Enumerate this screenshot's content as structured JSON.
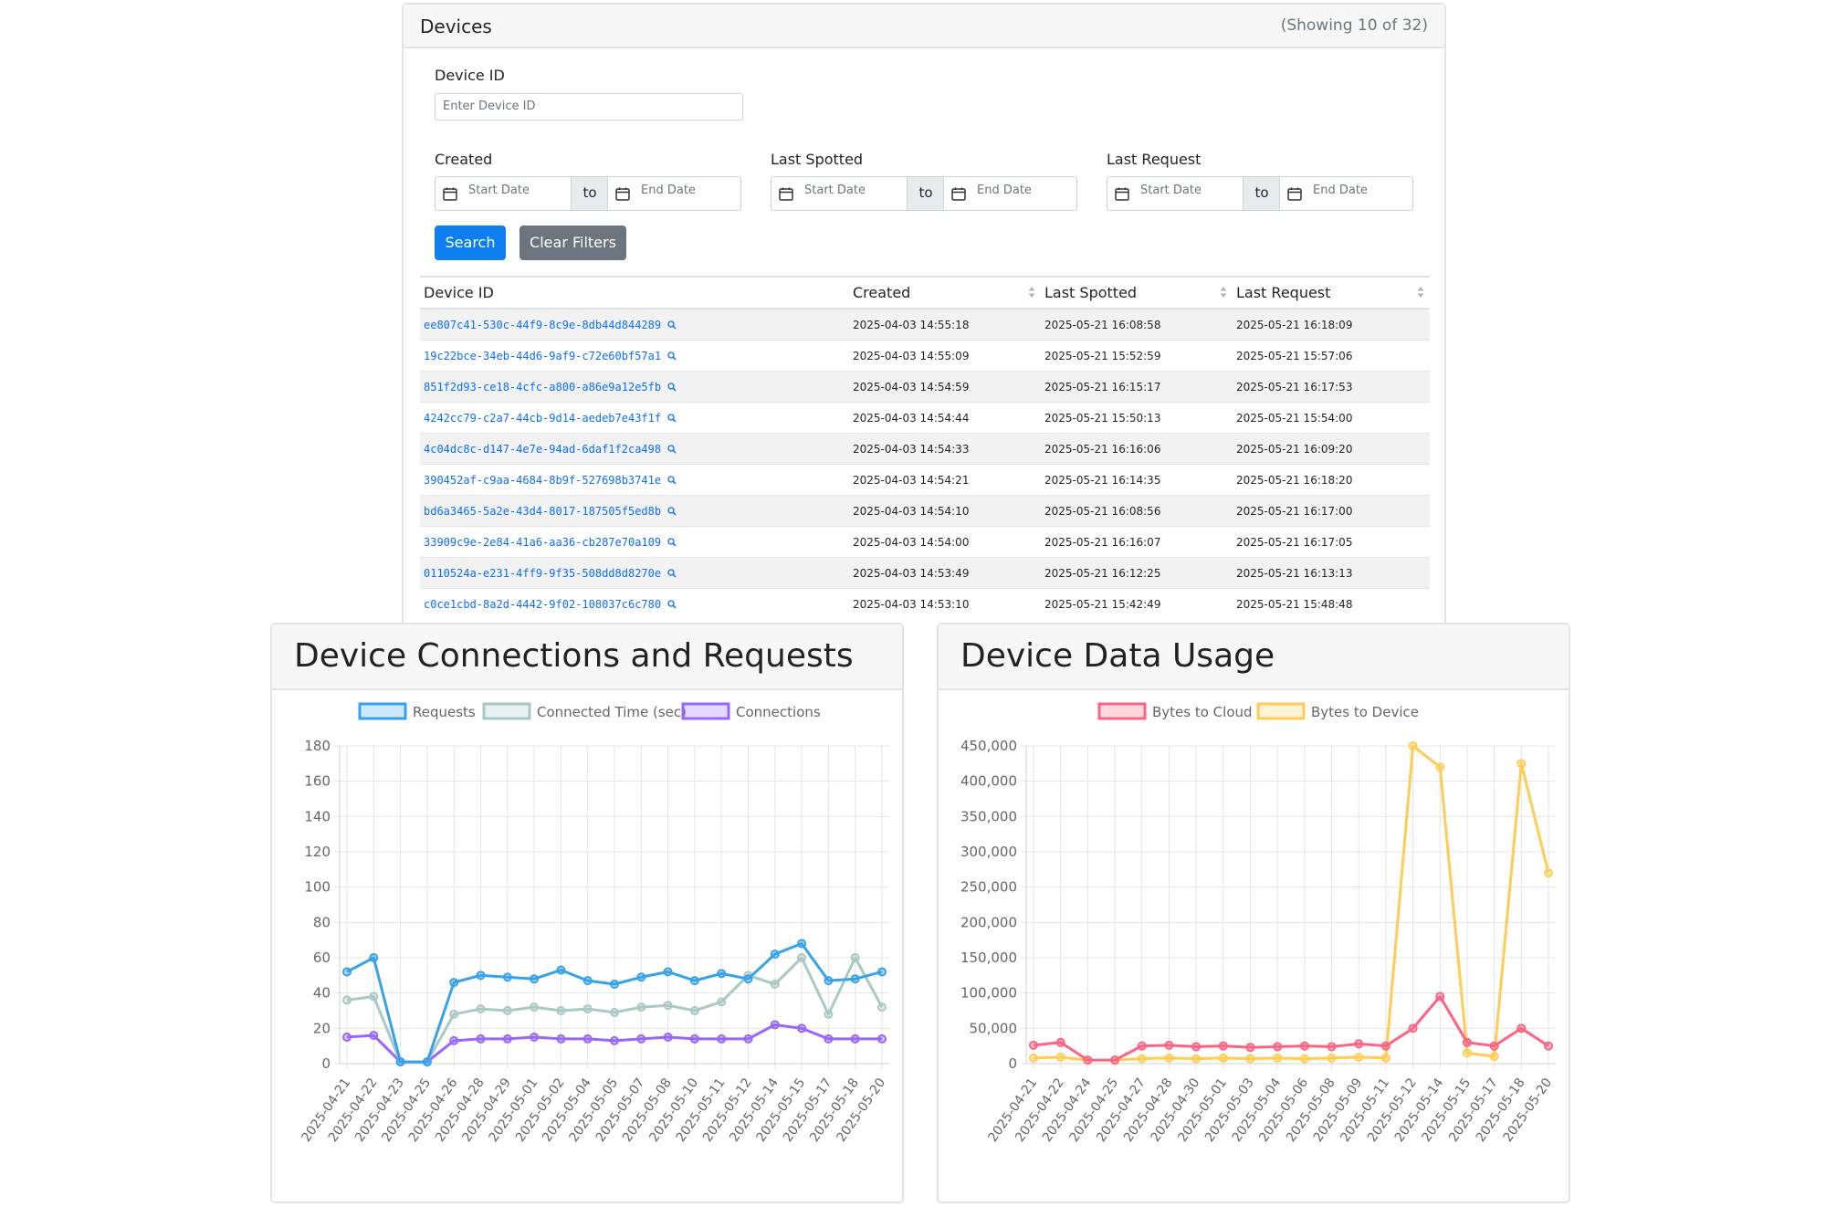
{
  "devices": {
    "title": "Devices",
    "showing": "(Showing 10 of 32)",
    "filters": {
      "device_id_label": "Device ID",
      "device_id_placeholder": "Enter Device ID",
      "created_label": "Created",
      "last_spotted_label": "Last Spotted",
      "last_request_label": "Last Request",
      "start_placeholder": "Start Date",
      "end_placeholder": "End Date",
      "to": "to",
      "search_label": "Search",
      "clear_label": "Clear Filters"
    },
    "columns": [
      "Device ID",
      "Created",
      "Last Spotted",
      "Last Request"
    ],
    "rows": [
      {
        "id": "ee807c41-530c-44f9-8c9e-8db44d844289",
        "created": "2025-04-03 14:55:18",
        "spotted": "2025-05-21 16:08:58",
        "request": "2025-05-21 16:18:09"
      },
      {
        "id": "19c22bce-34eb-44d6-9af9-c72e60bf57a1",
        "created": "2025-04-03 14:55:09",
        "spotted": "2025-05-21 15:52:59",
        "request": "2025-05-21 15:57:06"
      },
      {
        "id": "851f2d93-ce18-4cfc-a800-a86e9a12e5fb",
        "created": "2025-04-03 14:54:59",
        "spotted": "2025-05-21 16:15:17",
        "request": "2025-05-21 16:17:53"
      },
      {
        "id": "4242cc79-c2a7-44cb-9d14-aedeb7e43f1f",
        "created": "2025-04-03 14:54:44",
        "spotted": "2025-05-21 15:50:13",
        "request": "2025-05-21 15:54:00"
      },
      {
        "id": "4c04dc8c-d147-4e7e-94ad-6daf1f2ca498",
        "created": "2025-04-03 14:54:33",
        "spotted": "2025-05-21 16:16:06",
        "request": "2025-05-21 16:09:20"
      },
      {
        "id": "390452af-c9aa-4684-8b9f-527698b3741e",
        "created": "2025-04-03 14:54:21",
        "spotted": "2025-05-21 16:14:35",
        "request": "2025-05-21 16:18:20"
      },
      {
        "id": "bd6a3465-5a2e-43d4-8017-187505f5ed8b",
        "created": "2025-04-03 14:54:10",
        "spotted": "2025-05-21 16:08:56",
        "request": "2025-05-21 16:17:00"
      },
      {
        "id": "33909c9e-2e84-41a6-aa36-cb287e70a109",
        "created": "2025-04-03 14:54:00",
        "spotted": "2025-05-21 16:16:07",
        "request": "2025-05-21 16:17:05"
      },
      {
        "id": "0110524a-e231-4ff9-9f35-508dd8d8270e",
        "created": "2025-04-03 14:53:49",
        "spotted": "2025-05-21 16:12:25",
        "request": "2025-05-21 16:13:13"
      },
      {
        "id": "c0ce1cbd-8a2d-4442-9f02-108037c6c780",
        "created": "2025-04-03 14:53:10",
        "spotted": "2025-05-21 15:42:49",
        "request": "2025-05-21 15:48:48"
      }
    ]
  },
  "colors": {
    "requests": "#36a2eb",
    "connected_time": "#a9c9c4",
    "connections": "#9966ff",
    "bytes_to_cloud": "#ff6384",
    "bytes_to_device": "#ffcd56",
    "link": "#0d6efd",
    "primary": "#0d7ff0",
    "secondary": "#6c757d"
  },
  "chart_data": [
    {
      "type": "line",
      "title": "Device Connections and Requests",
      "x": [
        "2025-04-21",
        "2025-04-22",
        "2025-04-23",
        "2025-04-25",
        "2025-04-26",
        "2025-04-28",
        "2025-04-29",
        "2025-05-01",
        "2025-05-02",
        "2025-05-04",
        "2025-05-05",
        "2025-05-07",
        "2025-05-08",
        "2025-05-10",
        "2025-05-11",
        "2025-05-12",
        "2025-05-14",
        "2025-05-15",
        "2025-05-17",
        "2025-05-18",
        "2025-05-20"
      ],
      "ylim": [
        0,
        180
      ],
      "yticks": [
        0,
        20,
        40,
        60,
        80,
        100,
        120,
        140,
        160,
        180
      ],
      "legend": "top",
      "grid": true,
      "series": [
        {
          "name": "Requests",
          "values": [
            52,
            60,
            1,
            1,
            46,
            50,
            49,
            48,
            53,
            47,
            45,
            49,
            52,
            47,
            51,
            48,
            62,
            68,
            47,
            48,
            52
          ]
        },
        {
          "name": "Connected Time (sec)",
          "values": [
            36,
            38,
            1,
            1,
            28,
            31,
            30,
            32,
            30,
            31,
            29,
            32,
            33,
            30,
            35,
            50,
            45,
            60,
            28,
            60,
            32
          ]
        },
        {
          "name": "Connections",
          "values": [
            15,
            16,
            1,
            1,
            13,
            14,
            14,
            15,
            14,
            14,
            13,
            14,
            15,
            14,
            14,
            14,
            22,
            20,
            14,
            14,
            14
          ]
        }
      ]
    },
    {
      "type": "line",
      "title": "Device Data Usage",
      "x": [
        "2025-04-21",
        "2025-04-22",
        "2025-04-24",
        "2025-04-25",
        "2025-04-27",
        "2025-04-28",
        "2025-04-30",
        "2025-05-01",
        "2025-05-03",
        "2025-05-04",
        "2025-05-06",
        "2025-05-08",
        "2025-05-09",
        "2025-05-11",
        "2025-05-12",
        "2025-05-14",
        "2025-05-15",
        "2025-05-17",
        "2025-05-18",
        "2025-05-20"
      ],
      "ylim": [
        0,
        450000
      ],
      "yticks": [
        0,
        50000,
        100000,
        150000,
        200000,
        250000,
        300000,
        350000,
        400000,
        450000
      ],
      "legend": "top",
      "grid": true,
      "series": [
        {
          "name": "Bytes to Cloud",
          "values": [
            26000,
            30000,
            5000,
            5000,
            25000,
            26000,
            24000,
            25000,
            23000,
            24000,
            25000,
            24000,
            28000,
            25000,
            50000,
            95000,
            30000,
            25000,
            50000,
            25000
          ]
        },
        {
          "name": "Bytes to Device",
          "values": [
            8000,
            9000,
            5000,
            5000,
            7000,
            8000,
            7000,
            8000,
            7000,
            8000,
            7000,
            8000,
            9000,
            8000,
            450000,
            420000,
            15000,
            10000,
            425000,
            270000
          ]
        }
      ]
    }
  ]
}
